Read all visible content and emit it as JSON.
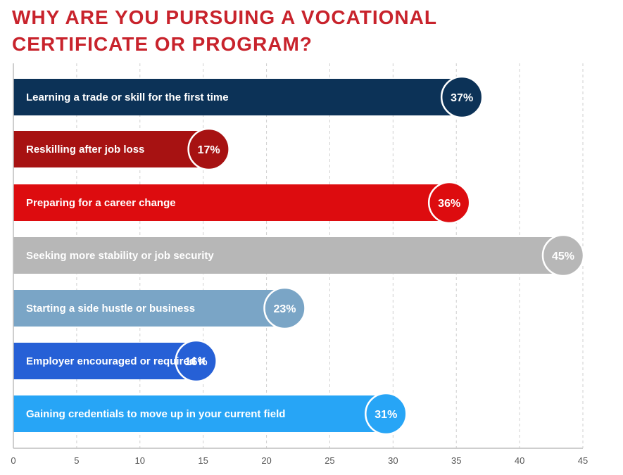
{
  "title": {
    "line1": "WHY ARE YOU PURSUING A VOCATIONAL",
    "line2": "CERTIFICATE OR PROGRAM?"
  },
  "chart_data": {
    "type": "bar",
    "orientation": "horizontal",
    "title": "WHY ARE YOU PURSUING A VOCATIONAL CERTIFICATE OR PROGRAM?",
    "categories": [
      "Learning a trade or skill for the first time",
      "Reskilling after job loss",
      "Preparing for a career change",
      "Seeking more stability or job security",
      "Starting a side hustle or business",
      "Employer encouraged or required it",
      "Gaining credentials to move up in your current field"
    ],
    "values": [
      37,
      17,
      36,
      45,
      23,
      16,
      31
    ],
    "value_labels": [
      "37%",
      "17%",
      "36%",
      "45%",
      "23%",
      "16%",
      "31%"
    ],
    "colors": [
      "#0c3257",
      "#a71212",
      "#dd0c0f",
      "#b7b7b7",
      "#7aa5c6",
      "#2660d6",
      "#27a5f6"
    ],
    "xlim": [
      0,
      45
    ],
    "xticks": [
      "0",
      "5",
      "10",
      "15",
      "20",
      "25",
      "30",
      "35",
      "40",
      "45"
    ],
    "grid": "vertical-dashed",
    "xlabel": "",
    "ylabel": ""
  }
}
